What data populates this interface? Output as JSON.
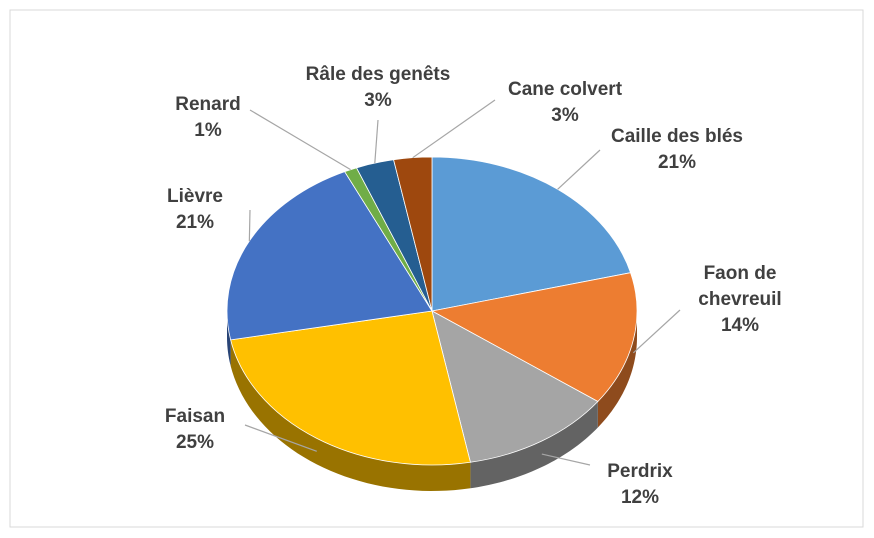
{
  "chart_data": {
    "type": "pie",
    "categories": [
      "Caille des blés",
      "Faon de chevreuil",
      "Perdrix",
      "Faisan",
      "Lièvre",
      "Renard",
      "Râle des genêts",
      "Cane colvert"
    ],
    "values": [
      21,
      14,
      12,
      25,
      21,
      1,
      3,
      3
    ],
    "value_labels": [
      "21%",
      "14%",
      "12%",
      "25%",
      "21%",
      "1%",
      "3%",
      "3%"
    ],
    "colors": [
      "#5b9bd5",
      "#ed7d31",
      "#a5a5a5",
      "#ffc000",
      "#4472c4",
      "#70ad47",
      "#255e91",
      "#9e480e"
    ]
  }
}
